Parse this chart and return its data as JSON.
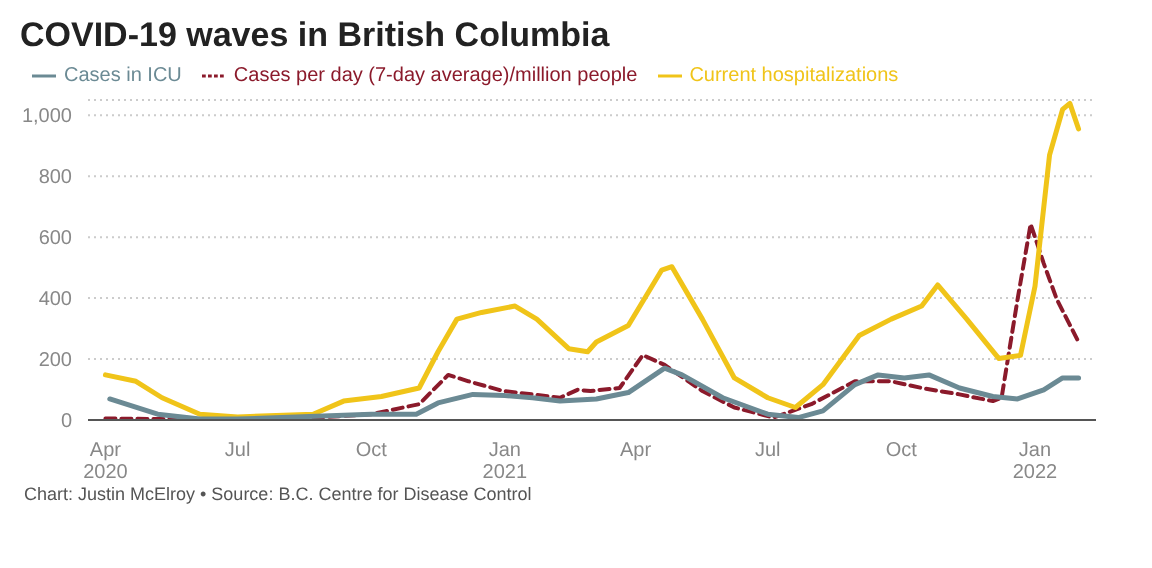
{
  "chart_data": {
    "type": "line",
    "title": "COVID-19 waves in British Columbia",
    "annotations": [
      "Chart: Justin McElroy • Source: B.C. Centre for Disease Control"
    ],
    "xlim": [
      "2020-03-20",
      "2022-02-12"
    ],
    "ylim": [
      0,
      1050
    ],
    "xticks": [
      {
        "value": "2020-04-01",
        "label": "Apr 2020"
      },
      {
        "value": "2020-07-01",
        "label": "Jul"
      },
      {
        "value": "2020-10-01",
        "label": "Oct"
      },
      {
        "value": "2021-01-01",
        "label": "Jan 2021"
      },
      {
        "value": "2021-04-01",
        "label": "Apr"
      },
      {
        "value": "2021-07-01",
        "label": "Jul"
      },
      {
        "value": "2021-10-01",
        "label": "Oct"
      },
      {
        "value": "2022-01-01",
        "label": "Jan 2022"
      }
    ],
    "yticks": [
      0,
      200,
      400,
      600,
      800,
      {
        "value": 1000,
        "label": "1,000"
      }
    ],
    "grid": "y",
    "legend": "top left",
    "marker": "none",
    "series": [
      {
        "name": "Cases per day (7-day average)/million people",
        "color": "#8b1a2b",
        "line_style": "dashed",
        "x": [
          "2020-04-01",
          "2020-05-15",
          "2020-07-01",
          "2020-08-15",
          "2020-10-01",
          "2020-11-03",
          "2020-11-23",
          "2020-12-07",
          "2020-12-31",
          "2021-01-20",
          "2021-02-08",
          "2021-02-20",
          "2021-03-01",
          "2021-03-21",
          "2021-04-06",
          "2021-04-21",
          "2021-05-17",
          "2021-06-08",
          "2021-07-05",
          "2021-07-31",
          "2021-08-30",
          "2021-09-24",
          "2021-10-15",
          "2021-11-10",
          "2021-12-03",
          "2021-12-09",
          "2021-12-20",
          "2021-12-29",
          "2022-01-07",
          "2022-01-16",
          "2022-01-31"
        ],
        "values": [
          5,
          3,
          2,
          5,
          19,
          52,
          148,
          127,
          95,
          84,
          73,
          99,
          95,
          105,
          213,
          181,
          95,
          41,
          8,
          52,
          127,
          127,
          105,
          84,
          62,
          73,
          396,
          643,
          514,
          396,
          256
        ]
      },
      {
        "name": "Current hospitalizations",
        "color": "#f0c419",
        "line_style": "solid",
        "x": [
          "2020-04-01",
          "2020-04-22",
          "2020-05-10",
          "2020-06-05",
          "2020-07-01",
          "2020-08-22",
          "2020-09-12",
          "2020-10-08",
          "2020-11-03",
          "2020-11-16",
          "2020-11-29",
          "2020-12-16",
          "2021-01-08",
          "2021-01-23",
          "2021-02-14",
          "2021-02-27",
          "2021-03-05",
          "2021-03-27",
          "2021-04-19",
          "2021-04-26",
          "2021-05-17",
          "2021-06-08",
          "2021-07-01",
          "2021-07-20",
          "2021-08-08",
          "2021-09-02",
          "2021-09-24",
          "2021-10-15",
          "2021-10-26",
          "2021-11-15",
          "2021-12-07",
          "2021-12-22",
          "2022-01-01",
          "2022-01-11",
          "2022-01-20",
          "2022-01-25",
          "2022-01-31"
        ],
        "values": [
          148,
          127,
          73,
          19,
          10,
          19,
          62,
          77,
          105,
          224,
          331,
          353,
          374,
          331,
          234,
          224,
          256,
          310,
          492,
          503,
          331,
          138,
          73,
          41,
          116,
          277,
          331,
          374,
          443,
          331,
          202,
          212,
          439,
          869,
          1019,
          1039,
          955
        ]
      },
      {
        "name": "Cases in ICU",
        "color": "#6b8a94",
        "line_style": "solid",
        "x": [
          "2020-04-04",
          "2020-05-07",
          "2020-06-05",
          "2020-07-01",
          "2020-10-01",
          "2020-11-01",
          "2020-11-16",
          "2020-12-10",
          "2021-01-01",
          "2021-01-20",
          "2021-02-08",
          "2021-03-05",
          "2021-03-27",
          "2021-04-21",
          "2021-05-03",
          "2021-05-31",
          "2021-07-01",
          "2021-07-22",
          "2021-08-08",
          "2021-08-30",
          "2021-09-15",
          "2021-10-03",
          "2021-10-20",
          "2021-11-10",
          "2021-12-03",
          "2021-12-20",
          "2022-01-07",
          "2022-01-20",
          "2022-01-31"
        ],
        "values": [
          69,
          19,
          3,
          3,
          19,
          19,
          56,
          84,
          80,
          73,
          62,
          69,
          90,
          170,
          148,
          73,
          19,
          8,
          30,
          116,
          148,
          138,
          148,
          105,
          77,
          69,
          99,
          138,
          138
        ]
      }
    ]
  }
}
